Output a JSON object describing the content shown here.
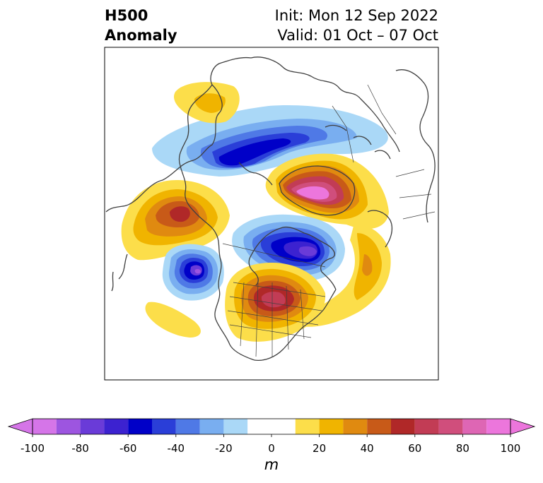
{
  "title": {
    "left_line1": "H500",
    "left_line2": "Anomaly",
    "right_line1": "Init: Mon 12 Sep 2022",
    "right_line2": "Valid: 01 Oct – 07 Oct"
  },
  "colorbar": {
    "unit": "m",
    "ticks": [
      "-100",
      "-80",
      "-60",
      "-40",
      "-20",
      "0",
      "20",
      "40",
      "60",
      "80",
      "100"
    ],
    "tick_values": [
      -100,
      -80,
      -60,
      -40,
      -20,
      0,
      20,
      40,
      60,
      80,
      100
    ],
    "levels": [
      -100,
      -90,
      -80,
      -70,
      -60,
      -50,
      -40,
      -30,
      -20,
      -10,
      10,
      20,
      30,
      40,
      50,
      60,
      70,
      80,
      90,
      100
    ],
    "colors": [
      "#d575e8",
      "#9d55e0",
      "#6a3bd8",
      "#3c22d0",
      "#0000c8",
      "#2a3ed8",
      "#4f79e6",
      "#79aef0",
      "#aad8f7",
      "#ffffff",
      "#fcde4a",
      "#f0b400",
      "#e08a10",
      "#c85a18",
      "#b02828",
      "#c23c55",
      "#d04e7c",
      "#de66b4",
      "#ec76dc"
    ],
    "extend_min_color": "#d575e8",
    "extend_max_color": "#ec76dc"
  }
}
